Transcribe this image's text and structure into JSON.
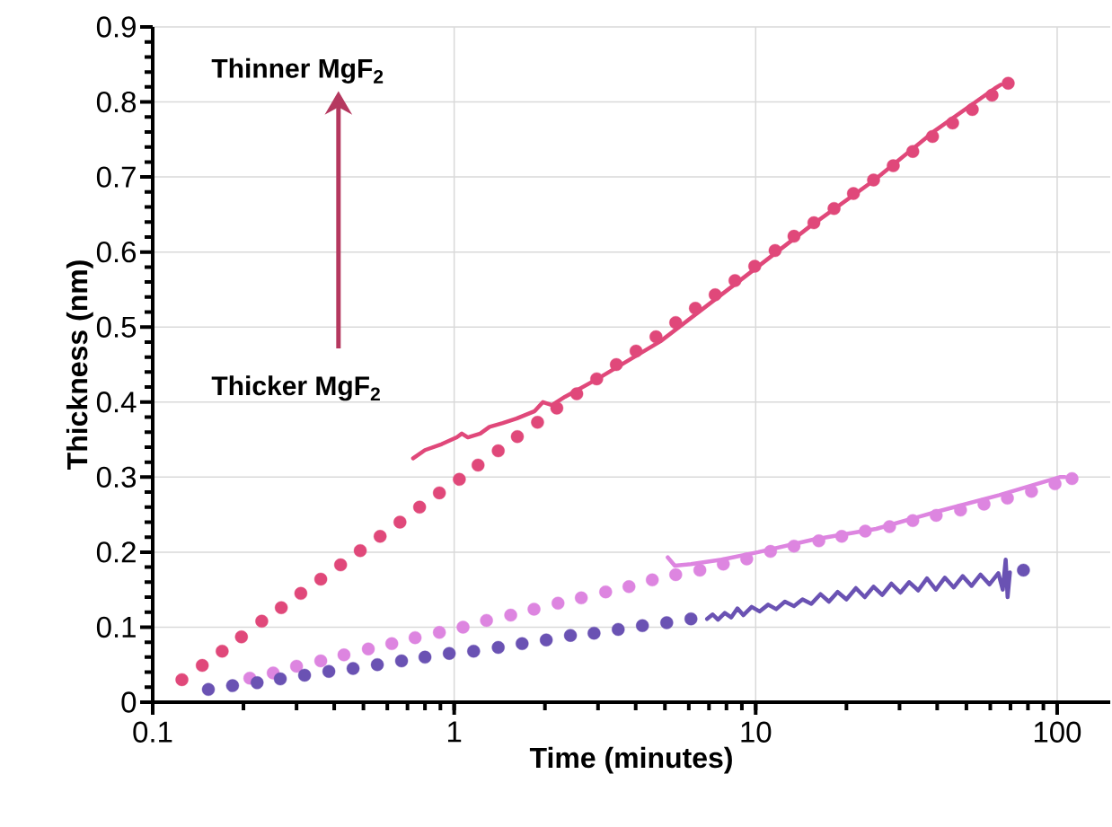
{
  "chart_data": {
    "type": "scatter",
    "xlabel": "Time (minutes)",
    "ylabel": "Thickness (nm)",
    "log": "x",
    "grid": true,
    "xlim": [
      0.1,
      150
    ],
    "ylim": [
      0,
      0.9
    ],
    "xticks": [
      0.1,
      1,
      10,
      100
    ],
    "yticks": [
      0,
      0.1,
      0.2,
      0.3,
      0.4,
      0.5,
      0.6,
      0.7,
      0.8,
      0.9
    ],
    "annotations": [
      "Thinner **MgF$_{2}$**",
      "Thicker **MgF$_{2}$**"
    ],
    "series": [
      {
        "type": "scatter",
        "marker": "circle",
        "color": "#e0487a",
        "x": [
          0.125,
          0.146,
          0.17,
          0.197,
          0.23,
          0.267,
          0.31,
          0.361,
          0.42,
          0.488,
          0.568,
          0.661,
          0.768,
          0.893,
          1.04,
          1.2,
          1.4,
          1.62,
          1.89,
          2.19,
          2.55,
          2.97,
          3.45,
          4.01,
          4.67,
          5.43,
          6.31,
          7.34,
          8.54,
          9.93,
          11.6,
          13.4,
          15.6,
          18.2,
          21.1,
          24.6,
          28.6,
          33.2,
          38.6,
          45.0,
          52.3,
          60.8,
          68.8
        ],
        "values": [
          0.03,
          0.049,
          0.068,
          0.087,
          0.108,
          0.126,
          0.145,
          0.164,
          0.183,
          0.202,
          0.221,
          0.24,
          0.26,
          0.279,
          0.297,
          0.316,
          0.335,
          0.354,
          0.373,
          0.392,
          0.411,
          0.431,
          0.45,
          0.468,
          0.487,
          0.506,
          0.525,
          0.543,
          0.562,
          0.581,
          0.602,
          0.621,
          0.639,
          0.658,
          0.678,
          0.696,
          0.715,
          0.734,
          0.754,
          0.772,
          0.79,
          0.809,
          0.825
        ]
      },
      {
        "type": "line",
        "color": "#e0487a",
        "x": [
          0.731,
          0.8,
          0.91,
          1.02,
          1.06,
          1.11,
          1.22,
          1.31,
          1.45,
          1.61,
          1.85,
          1.97,
          2.11,
          2.33,
          2.99,
          4.83,
          9.27,
          15.0,
          24.6,
          39.4,
          62.1,
          65.0
        ],
        "values": [
          0.325,
          0.336,
          0.344,
          0.353,
          0.358,
          0.353,
          0.358,
          0.367,
          0.372,
          0.378,
          0.388,
          0.4,
          0.396,
          0.407,
          0.431,
          0.481,
          0.568,
          0.633,
          0.695,
          0.762,
          0.818,
          0.823
        ]
      },
      {
        "type": "scatter",
        "marker": "circle",
        "color": "#dd85e0",
        "x": [
          0.21,
          0.251,
          0.3,
          0.361,
          0.431,
          0.519,
          0.621,
          0.742,
          0.893,
          1.07,
          1.28,
          1.54,
          1.84,
          2.21,
          2.64,
          3.18,
          3.8,
          4.54,
          5.43,
          6.53,
          7.81,
          9.34,
          11.2,
          13.4,
          16.2,
          19.3,
          23.1,
          27.8,
          33.2,
          39.7,
          47.8,
          57.2,
          68.4,
          82.2,
          98.4,
          112
        ],
        "values": [
          0.032,
          0.039,
          0.048,
          0.055,
          0.063,
          0.071,
          0.078,
          0.086,
          0.093,
          0.1,
          0.109,
          0.116,
          0.124,
          0.132,
          0.139,
          0.147,
          0.154,
          0.163,
          0.17,
          0.176,
          0.184,
          0.191,
          0.201,
          0.208,
          0.215,
          0.221,
          0.228,
          0.234,
          0.242,
          0.249,
          0.256,
          0.264,
          0.272,
          0.281,
          0.291,
          0.298
        ]
      },
      {
        "type": "line",
        "color": "#dd85e0",
        "x": [
          5.11,
          5.39,
          6.1,
          7.71,
          10.2,
          15.6,
          25.1,
          40.0,
          64.3,
          102,
          106
        ],
        "values": [
          0.193,
          0.182,
          0.184,
          0.19,
          0.2,
          0.217,
          0.231,
          0.254,
          0.276,
          0.3,
          0.3
        ]
      },
      {
        "type": "scatter",
        "marker": "circle",
        "color": "#6a52b3",
        "x": [
          0.153,
          0.184,
          0.222,
          0.265,
          0.319,
          0.384,
          0.462,
          0.556,
          0.669,
          0.8,
          0.963,
          1.16,
          1.4,
          1.68,
          2.02,
          2.43,
          2.91,
          3.5,
          4.21,
          5.07,
          6.1,
          77.3
        ],
        "values": [
          0.017,
          0.022,
          0.026,
          0.031,
          0.036,
          0.041,
          0.045,
          0.05,
          0.055,
          0.06,
          0.065,
          0.068,
          0.073,
          0.078,
          0.083,
          0.089,
          0.092,
          0.097,
          0.102,
          0.106,
          0.111,
          0.176
        ]
      },
      {
        "type": "line",
        "color": "#6a52b3",
        "x": [
          6.9,
          7.2,
          7.5,
          7.9,
          8.3,
          8.7,
          9.1,
          9.7,
          10.3,
          11,
          11.7,
          12.5,
          13.4,
          14.3,
          15.3,
          16.4,
          17.5,
          18.7,
          20,
          21.5,
          23,
          24.6,
          26.3,
          28.2,
          30.2,
          32.3,
          34.6,
          37,
          39.6,
          42.4,
          45.4,
          48.6,
          52,
          55.7,
          59.6,
          63.8,
          66,
          67.5,
          68.5,
          69.7
        ],
        "values": [
          0.111,
          0.117,
          0.11,
          0.119,
          0.113,
          0.125,
          0.116,
          0.127,
          0.121,
          0.13,
          0.124,
          0.134,
          0.128,
          0.137,
          0.131,
          0.144,
          0.134,
          0.147,
          0.137,
          0.152,
          0.14,
          0.154,
          0.143,
          0.158,
          0.146,
          0.16,
          0.149,
          0.165,
          0.15,
          0.166,
          0.153,
          0.168,
          0.155,
          0.17,
          0.157,
          0.172,
          0.15,
          0.19,
          0.14,
          0.173
        ]
      }
    ]
  }
}
